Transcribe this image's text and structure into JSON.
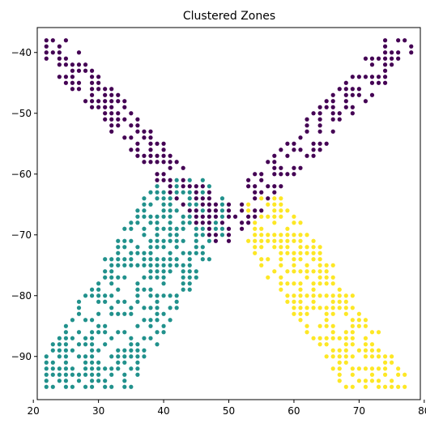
{
  "chart_data": {
    "type": "scatter",
    "title": "Clustered Zones",
    "xlabel": "",
    "ylabel": "",
    "xlim": [
      20.6,
      79.4
    ],
    "ylim": [
      -97.1,
      -35.9
    ],
    "xticks": [
      20,
      30,
      40,
      50,
      60,
      70,
      80
    ],
    "yticks": [
      -40,
      -50,
      -60,
      -70,
      -80,
      -90
    ],
    "grid": false,
    "legend": "none",
    "colors": {
      "cluster_0": "#440154",
      "cluster_1": "#21918c",
      "cluster_2": "#fde725"
    },
    "shapes": {
      "cluster_0": [
        {
          "from": [
            22,
            -38
          ],
          "to": [
            49,
            -69
          ],
          "hw": 2.5
        },
        {
          "from": [
            77,
            -38
          ],
          "to": [
            49,
            -69
          ],
          "hw": 2.5
        }
      ],
      "cluster_1": [
        {
          "from": [
            43,
            -67
          ],
          "to": [
            27,
            -95
          ],
          "hw": 7
        }
      ],
      "cluster_2": [
        {
          "from": [
            56,
            -68
          ],
          "to": [
            73,
            -95
          ],
          "hw": 4.8
        }
      ]
    },
    "sampling": {
      "step": 1,
      "keep_fraction": 0.62,
      "seed": 11
    }
  }
}
